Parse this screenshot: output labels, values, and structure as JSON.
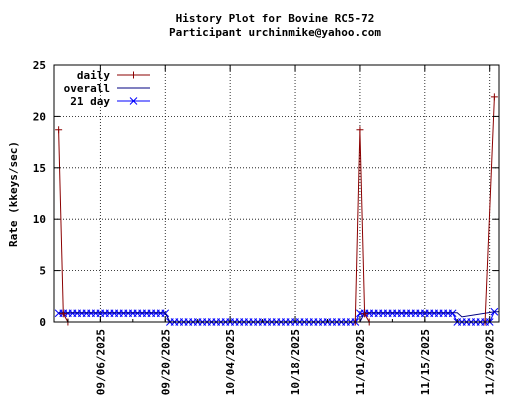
{
  "chart_data": {
    "type": "line",
    "title": "History Plot for Bovine RC5-72",
    "subtitle": "Participant urchinmike@yahoo.com",
    "xlabel": "",
    "ylabel": "Rate (kkeys/sec)",
    "ylim": [
      0,
      25
    ],
    "yticks": [
      0,
      5,
      10,
      15,
      20,
      25
    ],
    "xlim": [
      "2025-08-27",
      "2025-12-01"
    ],
    "xticks": [
      "09/06/2025",
      "09/20/2025",
      "10/04/2025",
      "10/18/2025",
      "11/01/2025",
      "11/15/2025",
      "11/29/2025"
    ],
    "grid": true,
    "legend_position": "top-left",
    "series": [
      {
        "name": "daily",
        "color": "#8b0000",
        "marker": "plus",
        "points": [
          [
            "2025-08-28",
            18.7
          ],
          [
            "2025-08-29",
            0.8
          ],
          [
            "2025-08-30",
            0
          ],
          [
            "2025-10-31",
            0
          ],
          [
            "2025-11-01",
            18.7
          ],
          [
            "2025-11-02",
            0.8
          ],
          [
            "2025-11-03",
            0
          ],
          [
            "2025-11-28",
            0
          ],
          [
            "2025-11-30",
            21.9
          ]
        ]
      },
      {
        "name": "overall",
        "color": "#000080",
        "marker": "none",
        "points": [
          [
            "2025-08-28",
            0.9
          ],
          [
            "2025-09-20",
            0.9
          ],
          [
            "2025-09-21",
            0
          ],
          [
            "2025-11-01",
            0
          ],
          [
            "2025-11-02",
            0.9
          ],
          [
            "2025-11-22",
            0.9
          ],
          [
            "2025-11-23",
            0.5
          ],
          [
            "2025-11-30",
            1.0
          ],
          [
            "2025-12-01",
            1.0
          ]
        ]
      },
      {
        "name": "21 day",
        "color": "#0000ff",
        "marker": "x",
        "points": [
          [
            "2025-08-28",
            0.85
          ],
          [
            "2025-08-29",
            0.85
          ],
          [
            "2025-08-30",
            0.85
          ],
          [
            "2025-08-31",
            0.85
          ],
          [
            "2025-09-01",
            0.85
          ],
          [
            "2025-09-02",
            0.85
          ],
          [
            "2025-09-03",
            0.85
          ],
          [
            "2025-09-04",
            0.85
          ],
          [
            "2025-09-05",
            0.85
          ],
          [
            "2025-09-06",
            0.85
          ],
          [
            "2025-09-07",
            0.85
          ],
          [
            "2025-09-08",
            0.85
          ],
          [
            "2025-09-09",
            0.85
          ],
          [
            "2025-09-10",
            0.85
          ],
          [
            "2025-09-11",
            0.85
          ],
          [
            "2025-09-12",
            0.85
          ],
          [
            "2025-09-13",
            0.85
          ],
          [
            "2025-09-14",
            0.85
          ],
          [
            "2025-09-15",
            0.85
          ],
          [
            "2025-09-16",
            0.85
          ],
          [
            "2025-09-17",
            0.85
          ],
          [
            "2025-09-18",
            0.85
          ],
          [
            "2025-09-19",
            0.85
          ],
          [
            "2025-09-20",
            0.85
          ],
          [
            "2025-09-21",
            0
          ],
          [
            "2025-09-22",
            0
          ],
          [
            "2025-09-23",
            0
          ],
          [
            "2025-09-24",
            0
          ],
          [
            "2025-09-25",
            0
          ],
          [
            "2025-09-26",
            0
          ],
          [
            "2025-09-27",
            0
          ],
          [
            "2025-09-28",
            0
          ],
          [
            "2025-09-29",
            0
          ],
          [
            "2025-09-30",
            0
          ],
          [
            "2025-10-01",
            0
          ],
          [
            "2025-10-02",
            0
          ],
          [
            "2025-10-03",
            0
          ],
          [
            "2025-10-04",
            0
          ],
          [
            "2025-10-05",
            0
          ],
          [
            "2025-10-06",
            0
          ],
          [
            "2025-10-07",
            0
          ],
          [
            "2025-10-08",
            0
          ],
          [
            "2025-10-09",
            0
          ],
          [
            "2025-10-10",
            0
          ],
          [
            "2025-10-11",
            0
          ],
          [
            "2025-10-12",
            0
          ],
          [
            "2025-10-13",
            0
          ],
          [
            "2025-10-14",
            0
          ],
          [
            "2025-10-15",
            0
          ],
          [
            "2025-10-16",
            0
          ],
          [
            "2025-10-17",
            0
          ],
          [
            "2025-10-18",
            0
          ],
          [
            "2025-10-19",
            0
          ],
          [
            "2025-10-20",
            0
          ],
          [
            "2025-10-21",
            0
          ],
          [
            "2025-10-22",
            0
          ],
          [
            "2025-10-23",
            0
          ],
          [
            "2025-10-24",
            0
          ],
          [
            "2025-10-25",
            0
          ],
          [
            "2025-10-26",
            0
          ],
          [
            "2025-10-27",
            0
          ],
          [
            "2025-10-28",
            0
          ],
          [
            "2025-10-29",
            0
          ],
          [
            "2025-10-30",
            0
          ],
          [
            "2025-10-31",
            0
          ],
          [
            "2025-11-01",
            0.85
          ],
          [
            "2025-11-02",
            0.85
          ],
          [
            "2025-11-03",
            0.85
          ],
          [
            "2025-11-04",
            0.85
          ],
          [
            "2025-11-05",
            0.85
          ],
          [
            "2025-11-06",
            0.85
          ],
          [
            "2025-11-07",
            0.85
          ],
          [
            "2025-11-08",
            0.85
          ],
          [
            "2025-11-09",
            0.85
          ],
          [
            "2025-11-10",
            0.85
          ],
          [
            "2025-11-11",
            0.85
          ],
          [
            "2025-11-12",
            0.85
          ],
          [
            "2025-11-13",
            0.85
          ],
          [
            "2025-11-14",
            0.85
          ],
          [
            "2025-11-15",
            0.85
          ],
          [
            "2025-11-16",
            0.85
          ],
          [
            "2025-11-17",
            0.85
          ],
          [
            "2025-11-18",
            0.85
          ],
          [
            "2025-11-19",
            0.85
          ],
          [
            "2025-11-20",
            0.85
          ],
          [
            "2025-11-21",
            0.85
          ],
          [
            "2025-11-22",
            0
          ],
          [
            "2025-11-23",
            0
          ],
          [
            "2025-11-24",
            0
          ],
          [
            "2025-11-25",
            0
          ],
          [
            "2025-11-26",
            0
          ],
          [
            "2025-11-27",
            0
          ],
          [
            "2025-11-28",
            0
          ],
          [
            "2025-11-29",
            0
          ],
          [
            "2025-11-30",
            1.0
          ]
        ]
      }
    ]
  }
}
